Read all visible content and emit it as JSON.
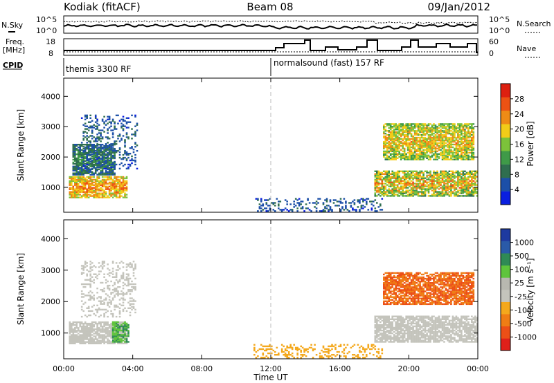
{
  "header": {
    "station": "Kodiak (fitACF)",
    "beam": "Beam 08",
    "date": "09/Jan/2012"
  },
  "status_panel": {
    "nsky_label": "N.Sky",
    "nsearch_label": "N.Search",
    "freq_label_1": "Freq.",
    "freq_label_2": "[MHz]",
    "nave_label": "Nave",
    "cpid_label": "CPID",
    "noise_ticks": [
      "10^5",
      "10^0"
    ],
    "freq_ticks": [
      "18",
      "8"
    ],
    "nave_ticks": [
      "60",
      "0"
    ],
    "cpid_segments": [
      {
        "start": 0,
        "end": 12,
        "label": "themis 3300 RF"
      },
      {
        "start": 12,
        "end": 24,
        "label": "normalsound (fast) 157 RF"
      }
    ]
  },
  "colors": {
    "power_scale": [
      "#0a1fe0",
      "#1c4fa8",
      "#2f6e4f",
      "#3f9a48",
      "#7cc23a",
      "#f2cc18",
      "#ee8b16",
      "#ec5214",
      "#dd2010"
    ],
    "velocity_scale": [
      "#e0201a",
      "#ec4f17",
      "#ef7d14",
      "#f4a81c",
      "#c4c4bc",
      "#b8b8b0",
      "#5fc43c",
      "#2f8a55",
      "#2a5aa8",
      "#1e3aa0"
    ],
    "ground_scatter": "#c4c4bc"
  },
  "chart_data": [
    {
      "type": "heatmap",
      "name": "power",
      "xlabel": "Time UT",
      "ylabel": "Slant Range [km]",
      "colorbar_label": "Power [dB]",
      "colorbar_ticks": [
        "4",
        "8",
        "12",
        "16",
        "20",
        "24",
        "28"
      ],
      "yticks": [
        "1000",
        "2000",
        "3000",
        "4000"
      ],
      "ylim": [
        180,
        4600
      ],
      "xlim": [
        0,
        24
      ],
      "xticks": [
        "00:00",
        "04:00",
        "08:00",
        "12:00",
        "16:00",
        "20:00",
        "00:00"
      ],
      "colorbar_range": [
        0,
        32
      ],
      "regions": [
        {
          "t": [
            0.3,
            3.7
          ],
          "r": [
            650,
            1350
          ],
          "level": [
            14,
            28
          ]
        },
        {
          "t": [
            0.5,
            3.0
          ],
          "r": [
            1400,
            2400
          ],
          "level": [
            4,
            14
          ]
        },
        {
          "t": [
            1.0,
            4.3
          ],
          "r": [
            1600,
            3400
          ],
          "level": [
            2,
            10
          ]
        },
        {
          "t": [
            18.0,
            24.0
          ],
          "r": [
            700,
            1550
          ],
          "level": [
            8,
            28
          ]
        },
        {
          "t": [
            18.5,
            23.8
          ],
          "r": [
            1900,
            3100
          ],
          "level": [
            10,
            26
          ]
        },
        {
          "t": [
            11.0,
            18.5
          ],
          "r": [
            200,
            650
          ],
          "level": [
            2,
            10
          ]
        }
      ]
    },
    {
      "type": "heatmap",
      "name": "velocity",
      "xlabel": "Time UT",
      "ylabel": "Slant Range [km]",
      "colorbar_label": "Velocity [m s⁻¹]",
      "colorbar_ticks": [
        "-1000",
        "-500",
        "-100",
        "-25",
        "25",
        "100",
        "500",
        "1000"
      ],
      "yticks": [
        "1000",
        "2000",
        "3000",
        "4000"
      ],
      "ylim": [
        180,
        4600
      ],
      "xlim": [
        0,
        24
      ],
      "xticks": [
        "00:00",
        "04:00",
        "08:00",
        "12:00",
        "16:00",
        "20:00",
        "00:00"
      ],
      "colorbar_range": [
        -1250,
        1250
      ],
      "regions": [
        {
          "t": [
            0.3,
            3.7
          ],
          "r": [
            650,
            1350
          ],
          "kind": "ground"
        },
        {
          "t": [
            2.8,
            3.8
          ],
          "r": [
            700,
            1350
          ],
          "value": 100
        },
        {
          "t": [
            1.0,
            4.2
          ],
          "r": [
            1500,
            3300
          ],
          "kind": "ground"
        },
        {
          "t": [
            18.0,
            24.0
          ],
          "r": [
            700,
            1550
          ],
          "kind": "ground"
        },
        {
          "t": [
            18.5,
            23.8
          ],
          "r": [
            1900,
            2900
          ],
          "value": -300
        },
        {
          "t": [
            11.0,
            18.5
          ],
          "r": [
            200,
            650
          ],
          "value": -60
        }
      ]
    }
  ]
}
